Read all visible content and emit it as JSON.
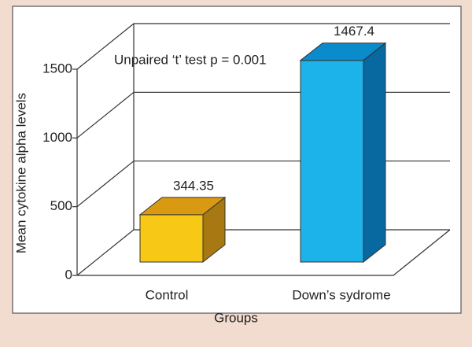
{
  "chart_data": {
    "type": "bar3d",
    "annotation": "Unpaired ‘t’ test p = 0.001",
    "x_label": "Groups",
    "y_label": "Mean cytokine alpha levels",
    "categories": [
      "Control",
      "Down’s sydrome"
    ],
    "values": [
      344.35,
      1467.4
    ],
    "colors": [
      {
        "front": "#f7c815",
        "top": "#d99a12",
        "side": "#a87812"
      },
      {
        "front": "#1cb2ea",
        "top": "#0a8ccc",
        "side": "#0869a0"
      }
    ],
    "ylim": [
      0,
      1500
    ],
    "yticks": [
      0,
      500,
      1000,
      1500
    ],
    "grid": true
  }
}
